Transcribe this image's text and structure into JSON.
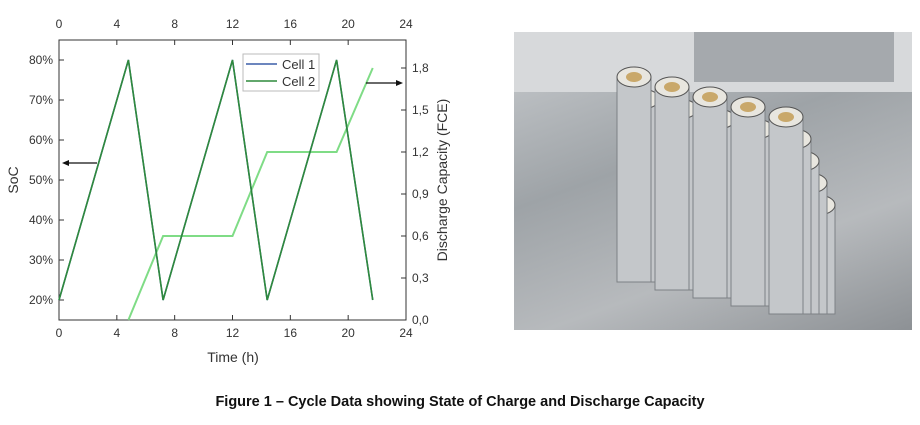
{
  "chart_data": {
    "type": "line",
    "xlabel": "Time (h)",
    "ylabel": "SoC",
    "y2label": "Discharge Capacity (FCE)",
    "xlim": [
      0,
      24
    ],
    "ylim": [
      15,
      85
    ],
    "y2lim": [
      0,
      2.0
    ],
    "xticks": [
      "0",
      "4",
      "8",
      "12",
      "16",
      "20",
      "24"
    ],
    "yticks": [
      "20%",
      "30%",
      "40%",
      "50%",
      "60%",
      "70%",
      "80%"
    ],
    "y2ticks": [
      "0,0",
      "0,3",
      "0,6",
      "0,9",
      "1,2",
      "1,5",
      "1,8"
    ],
    "legend": "top-right",
    "grid": false,
    "series": [
      {
        "name": "Cell 1",
        "axis": "SoC",
        "color": "#3b5fa8",
        "x": [
          0,
          4.8,
          7.2,
          12,
          14.4,
          19.2,
          21.7
        ],
        "y": [
          20,
          80,
          20,
          80,
          20,
          80,
          20
        ]
      },
      {
        "name": "Cell 2",
        "axis": "SoC",
        "color": "#2f8a3c",
        "x": [
          0,
          4.8,
          7.2,
          12,
          14.4,
          19.2,
          21.7
        ],
        "y": [
          20,
          80,
          20,
          80,
          20,
          80,
          20
        ]
      },
      {
        "axis": "Discharge Capacity",
        "color": "#7fdc86",
        "x": [
          4.8,
          7.2,
          12,
          14.4,
          19.2,
          21.7
        ],
        "y": [
          0,
          0.6,
          0.6,
          1.2,
          1.2,
          1.8
        ]
      }
    ]
  },
  "caption": "Figure 1 – Cycle Data showing State of Charge and Discharge Capacity"
}
